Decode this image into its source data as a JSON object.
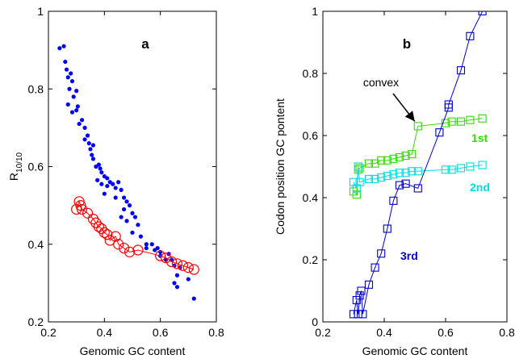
{
  "chart_data": [
    {
      "type": "scatter",
      "panel_label": "a",
      "xlabel": "Genomic GC content",
      "ylabel": "R",
      "ylabel_sub": "10/10",
      "xlim": [
        0.2,
        0.8
      ],
      "ylim": [
        0.2,
        1.0
      ],
      "xticks": [
        "0.2",
        "0.4",
        "0.6",
        "0.8"
      ],
      "yticks": [
        "0.2",
        "0.4",
        "0.6",
        "0.8",
        "1"
      ],
      "xtick_values": [
        0.2,
        0.4,
        0.6,
        0.8
      ],
      "ytick_values": [
        0.2,
        0.4,
        0.6,
        0.8,
        1.0
      ],
      "grid": false,
      "series": [
        {
          "marker": "dot",
          "color": "#0000ff",
          "points": [
            [
              0.24,
              0.905
            ],
            [
              0.255,
              0.91
            ],
            [
              0.26,
              0.87
            ],
            [
              0.265,
              0.85
            ],
            [
              0.27,
              0.83
            ],
            [
              0.275,
              0.8
            ],
            [
              0.28,
              0.84
            ],
            [
              0.285,
              0.82
            ],
            [
              0.29,
              0.78
            ],
            [
              0.3,
              0.795
            ],
            [
              0.27,
              0.76
            ],
            [
              0.285,
              0.74
            ],
            [
              0.3,
              0.745
            ],
            [
              0.305,
              0.755
            ],
            [
              0.31,
              0.71
            ],
            [
              0.32,
              0.72
            ],
            [
              0.33,
              0.7
            ],
            [
              0.34,
              0.68
            ],
            [
              0.345,
              0.66
            ],
            [
              0.35,
              0.645
            ],
            [
              0.355,
              0.63
            ],
            [
              0.36,
              0.655
            ],
            [
              0.37,
              0.6
            ],
            [
              0.38,
              0.605
            ],
            [
              0.385,
              0.595
            ],
            [
              0.39,
              0.585
            ],
            [
              0.375,
              0.565
            ],
            [
              0.39,
              0.555
            ],
            [
              0.4,
              0.575
            ],
            [
              0.41,
              0.57
            ],
            [
              0.42,
              0.56
            ],
            [
              0.43,
              0.555
            ],
            [
              0.44,
              0.545
            ],
            [
              0.45,
              0.56
            ],
            [
              0.46,
              0.54
            ],
            [
              0.47,
              0.52
            ],
            [
              0.48,
              0.51
            ],
            [
              0.49,
              0.5
            ],
            [
              0.5,
              0.48
            ],
            [
              0.51,
              0.47
            ],
            [
              0.52,
              0.45
            ],
            [
              0.47,
              0.49
            ],
            [
              0.46,
              0.47
            ],
            [
              0.5,
              0.43
            ],
            [
              0.53,
              0.42
            ],
            [
              0.55,
              0.4
            ],
            [
              0.58,
              0.385
            ],
            [
              0.6,
              0.37
            ],
            [
              0.6,
              0.38
            ],
            [
              0.62,
              0.36
            ],
            [
              0.63,
              0.375
            ],
            [
              0.64,
              0.36
            ],
            [
              0.65,
              0.345
            ],
            [
              0.66,
              0.32
            ],
            [
              0.67,
              0.34
            ],
            [
              0.65,
              0.3
            ],
            [
              0.66,
              0.29
            ],
            [
              0.7,
              0.31
            ],
            [
              0.72,
              0.26
            ],
            [
              0.55,
              0.39
            ],
            [
              0.57,
              0.4
            ],
            [
              0.59,
              0.39
            ],
            [
              0.48,
              0.46
            ],
            [
              0.44,
              0.52
            ],
            [
              0.41,
              0.55
            ],
            [
              0.36,
              0.62
            ],
            [
              0.33,
              0.67
            ],
            [
              0.4,
              0.53
            ]
          ]
        },
        {
          "marker": "circle-line",
          "color": "#ff0000",
          "points": [
            [
              0.3,
              0.49
            ],
            [
              0.31,
              0.51
            ],
            [
              0.315,
              0.5
            ],
            [
              0.32,
              0.49
            ],
            [
              0.34,
              0.48
            ],
            [
              0.36,
              0.465
            ],
            [
              0.37,
              0.455
            ],
            [
              0.38,
              0.445
            ],
            [
              0.39,
              0.44
            ],
            [
              0.4,
              0.43
            ],
            [
              0.41,
              0.425
            ],
            [
              0.42,
              0.41
            ],
            [
              0.44,
              0.42
            ],
            [
              0.45,
              0.4
            ],
            [
              0.47,
              0.39
            ],
            [
              0.49,
              0.38
            ],
            [
              0.52,
              0.385
            ],
            [
              0.6,
              0.37
            ],
            [
              0.62,
              0.365
            ],
            [
              0.64,
              0.355
            ],
            [
              0.66,
              0.35
            ],
            [
              0.68,
              0.345
            ],
            [
              0.7,
              0.34
            ],
            [
              0.72,
              0.335
            ]
          ]
        }
      ]
    },
    {
      "type": "line",
      "panel_label": "b",
      "xlabel": "Genomic GC content",
      "ylabel": "Codon position GC pontent",
      "xlim": [
        0.2,
        0.8
      ],
      "ylim": [
        0,
        1
      ],
      "xticks": [
        "0.2",
        "0.4",
        "0.6",
        "0.8"
      ],
      "yticks": [
        "0",
        "0.2",
        "0.4",
        "0.6",
        "0.8",
        "1"
      ],
      "xtick_values": [
        0.2,
        0.4,
        0.6,
        0.8
      ],
      "ytick_values": [
        0,
        0.2,
        0.4,
        0.6,
        0.8,
        1.0
      ],
      "grid": false,
      "annotation": {
        "text": "convex",
        "arrow_target": [
          0.51,
          0.63
        ]
      },
      "series": [
        {
          "name": "1st",
          "color": "#33dd00",
          "points": [
            [
              0.3,
              0.42
            ],
            [
              0.31,
              0.41
            ],
            [
              0.315,
              0.49
            ],
            [
              0.32,
              0.495
            ],
            [
              0.35,
              0.51
            ],
            [
              0.37,
              0.51
            ],
            [
              0.39,
              0.52
            ],
            [
              0.41,
              0.52
            ],
            [
              0.43,
              0.525
            ],
            [
              0.45,
              0.53
            ],
            [
              0.47,
              0.535
            ],
            [
              0.49,
              0.54
            ],
            [
              0.51,
              0.63
            ],
            [
              0.6,
              0.64
            ],
            [
              0.62,
              0.645
            ],
            [
              0.65,
              0.645
            ],
            [
              0.68,
              0.65
            ],
            [
              0.72,
              0.655
            ]
          ]
        },
        {
          "name": "2nd",
          "color": "#00dddd",
          "points": [
            [
              0.3,
              0.45
            ],
            [
              0.31,
              0.43
            ],
            [
              0.315,
              0.5
            ],
            [
              0.32,
              0.45
            ],
            [
              0.35,
              0.46
            ],
            [
              0.37,
              0.46
            ],
            [
              0.39,
              0.465
            ],
            [
              0.41,
              0.47
            ],
            [
              0.43,
              0.475
            ],
            [
              0.45,
              0.48
            ],
            [
              0.47,
              0.48
            ],
            [
              0.49,
              0.485
            ],
            [
              0.51,
              0.485
            ],
            [
              0.6,
              0.49
            ],
            [
              0.62,
              0.49
            ],
            [
              0.65,
              0.495
            ],
            [
              0.68,
              0.5
            ],
            [
              0.72,
              0.505
            ]
          ]
        },
        {
          "name": "3rd",
          "color": "#0000cc",
          "points": [
            [
              0.3,
              0.025
            ],
            [
              0.31,
              0.07
            ],
            [
              0.315,
              0.025
            ],
            [
              0.32,
              0.085
            ],
            [
              0.325,
              0.1
            ],
            [
              0.33,
              0.025
            ],
            [
              0.35,
              0.12
            ],
            [
              0.37,
              0.175
            ],
            [
              0.39,
              0.22
            ],
            [
              0.41,
              0.3
            ],
            [
              0.43,
              0.39
            ],
            [
              0.45,
              0.44
            ],
            [
              0.47,
              0.445
            ],
            [
              0.51,
              0.43
            ],
            [
              0.58,
              0.61
            ],
            [
              0.61,
              0.69
            ],
            [
              0.61,
              0.7
            ],
            [
              0.65,
              0.81
            ],
            [
              0.68,
              0.92
            ],
            [
              0.72,
              1.0
            ]
          ]
        }
      ]
    }
  ]
}
